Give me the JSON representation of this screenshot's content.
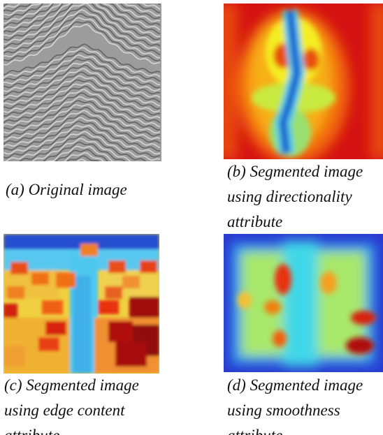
{
  "figures": [
    {
      "caption_lines": [
        "(a) Original image"
      ]
    },
    {
      "caption_lines": [
        "(b) Segmented image",
        "using directionality",
        "attribute"
      ]
    },
    {
      "caption_lines": [
        "(c) Segmented image",
        "using edge content",
        "attribute"
      ]
    },
    {
      "caption_lines": [
        "(d) Segmented image",
        "using smoothness",
        "attribute"
      ]
    }
  ]
}
